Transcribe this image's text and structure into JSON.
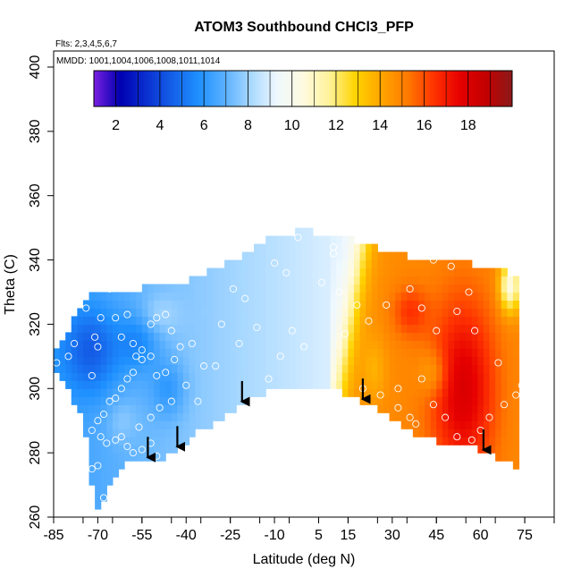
{
  "chart_data": {
    "type": "heatmap",
    "title": "ATOM3 Southbound CHCl3_PFP",
    "annotation_flights": "Flts: 2,3,4,5,6,7",
    "annotation_dates": "MMDD: 1001,1004,1006,1008,1011,1014",
    "xlabel": "Latitude (deg N)",
    "ylabel": "Theta (C)",
    "xlim": [
      -85,
      85
    ],
    "ylim": [
      260,
      405
    ],
    "x_tick_labels": [
      "-85",
      "-70",
      "-55",
      "-40",
      "-25",
      "-10",
      "5",
      "15",
      "30",
      "45",
      "60",
      "75"
    ],
    "y_tick_labels": [
      "260",
      "280",
      "300",
      "320",
      "340",
      "360",
      "380",
      "400"
    ],
    "colorbar": {
      "range": [
        1,
        20
      ],
      "tick_labels": [
        "2",
        "4",
        "6",
        "8",
        "10",
        "12",
        "14",
        "16",
        "18"
      ],
      "colors": [
        "#7a1fe0",
        "#0000b0",
        "#0a2fd0",
        "#1560e8",
        "#1e90ff",
        "#5ab0ff",
        "#a8d8ff",
        "#eef8ff",
        "#fffae0",
        "#fff29a",
        "#ffd400",
        "#ffa500",
        "#ff7a00",
        "#ff3300",
        "#e60000",
        "#c20000",
        "#8b1a1a"
      ]
    },
    "arrows_latitude": [
      -53,
      -43,
      -21,
      20,
      61
    ],
    "samples": [
      [
        -84,
        308
      ],
      [
        -80,
        310
      ],
      [
        -78,
        314
      ],
      [
        -74,
        325
      ],
      [
        -71,
        316
      ],
      [
        -70,
        313
      ],
      [
        -72,
        304
      ],
      [
        -69,
        322
      ],
      [
        -66,
        331
      ],
      [
        -64,
        322
      ],
      [
        -62,
        316
      ],
      [
        -60,
        323
      ],
      [
        -58,
        314
      ],
      [
        -57,
        310
      ],
      [
        -55,
        312
      ],
      [
        -52,
        320
      ],
      [
        -50,
        322
      ],
      [
        -47,
        323
      ],
      [
        -45,
        318
      ],
      [
        -42,
        313
      ],
      [
        -44,
        309
      ],
      [
        -47,
        305
      ],
      [
        -50,
        304
      ],
      [
        -52,
        310
      ],
      [
        -55,
        309
      ],
      [
        -58,
        305
      ],
      [
        -60,
        303
      ],
      [
        -62,
        300
      ],
      [
        -64,
        297
      ],
      [
        -66,
        296
      ],
      [
        -68,
        292
      ],
      [
        -70,
        290
      ],
      [
        -72,
        287
      ],
      [
        -69,
        285
      ],
      [
        -67,
        283
      ],
      [
        -64,
        284
      ],
      [
        -62,
        285
      ],
      [
        -60,
        282
      ],
      [
        -58,
        280
      ],
      [
        -55,
        281
      ],
      [
        -52,
        283
      ],
      [
        -50,
        279
      ],
      [
        -70,
        276
      ],
      [
        -72,
        275
      ],
      [
        -74,
        275
      ],
      [
        -68,
        266
      ],
      [
        -66,
        260
      ],
      [
        -45,
        296
      ],
      [
        -49,
        294
      ],
      [
        -52,
        291
      ],
      [
        -56,
        288
      ],
      [
        -40,
        301
      ],
      [
        -36,
        296
      ],
      [
        -30,
        307
      ],
      [
        -28,
        320
      ],
      [
        -24,
        331
      ],
      [
        -20,
        328
      ],
      [
        -16,
        319
      ],
      [
        -22,
        314
      ],
      [
        -12,
        303
      ],
      [
        -8,
        310
      ],
      [
        -4,
        318
      ],
      [
        0,
        313
      ],
      [
        -6,
        336
      ],
      [
        -10,
        339
      ],
      [
        -2,
        347
      ],
      [
        4,
        351
      ],
      [
        10,
        342
      ],
      [
        6,
        333
      ],
      [
        12,
        330
      ],
      [
        18,
        326
      ],
      [
        22,
        321
      ],
      [
        28,
        326
      ],
      [
        36,
        331
      ],
      [
        40,
        325
      ],
      [
        45,
        318
      ],
      [
        40,
        303
      ],
      [
        44,
        295
      ],
      [
        48,
        291
      ],
      [
        52,
        285
      ],
      [
        57,
        284
      ],
      [
        60,
        287
      ],
      [
        63,
        291
      ],
      [
        68,
        295
      ],
      [
        72,
        298
      ],
      [
        74,
        301
      ],
      [
        66,
        308
      ],
      [
        58,
        318
      ],
      [
        52,
        324
      ],
      [
        56,
        330
      ],
      [
        50,
        338
      ],
      [
        44,
        340
      ],
      [
        38,
        343
      ],
      [
        30,
        345
      ],
      [
        24,
        348
      ],
      [
        16,
        349
      ],
      [
        10,
        344
      ],
      [
        14,
        317
      ],
      [
        20,
        300
      ],
      [
        26,
        298
      ],
      [
        32,
        294
      ],
      [
        36,
        291
      ],
      [
        38,
        289
      ],
      [
        32,
        300
      ],
      [
        -14,
        349
      ],
      [
        -34,
        307
      ],
      [
        -38,
        314
      ]
    ]
  }
}
